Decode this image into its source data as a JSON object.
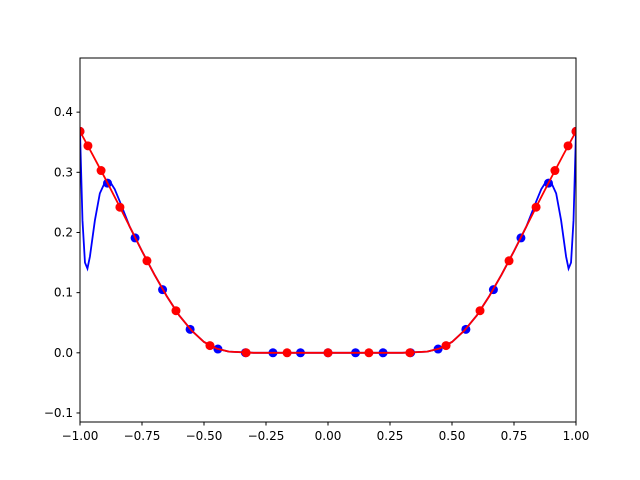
{
  "chart_data": {
    "type": "line",
    "xlim": [
      -1,
      1
    ],
    "ylim": [
      -0.115,
      0.49
    ],
    "xticks": [
      {
        "value": -1,
        "label": "−1.00"
      },
      {
        "value": -0.75,
        "label": "−0.75"
      },
      {
        "value": -0.5,
        "label": "−0.50"
      },
      {
        "value": -0.25,
        "label": "−0.25"
      },
      {
        "value": 0,
        "label": "0.00"
      },
      {
        "value": 0.25,
        "label": "0.25"
      },
      {
        "value": 0.5,
        "label": "0.50"
      },
      {
        "value": 0.75,
        "label": "0.75"
      },
      {
        "value": 1,
        "label": "1.00"
      }
    ],
    "yticks": [
      {
        "value": -0.1,
        "label": "−0.1"
      },
      {
        "value": 0,
        "label": "0.0"
      },
      0.1,
      0.2,
      0.3,
      0.4
    ],
    "series": [
      {
        "style": "line",
        "color": "#0000ff",
        "x": [
          -1,
          -0.99,
          -0.98,
          -0.97,
          -0.96,
          -0.94,
          -0.92,
          -0.9,
          -0.88,
          -0.86,
          -0.84,
          -0.8,
          -0.75,
          -0.7,
          -0.65,
          -0.6,
          -0.55,
          -0.5,
          -0.45,
          -0.4,
          -0.3,
          -0.2,
          -0.1,
          0,
          0.1,
          0.2,
          0.3,
          0.4,
          0.45,
          0.5,
          0.55,
          0.6,
          0.65,
          0.7,
          0.75,
          0.8,
          0.84,
          0.86,
          0.88,
          0.9,
          0.92,
          0.94,
          0.96,
          0.97,
          0.98,
          0.99,
          1
        ],
        "values": [
          0.368,
          0.22,
          0.15,
          0.14,
          0.16,
          0.22,
          0.265,
          0.283,
          0.285,
          0.272,
          0.252,
          0.21,
          0.169,
          0.13,
          0.094,
          0.062,
          0.037,
          0.018,
          0.0072,
          0.0019,
          0,
          0,
          0,
          0,
          0,
          0,
          0,
          0.0019,
          0.0072,
          0.018,
          0.037,
          0.062,
          0.094,
          0.13,
          0.169,
          0.21,
          0.252,
          0.272,
          0.285,
          0.283,
          0.265,
          0.22,
          0.16,
          0.14,
          0.15,
          0.22,
          0.368
        ]
      },
      {
        "style": "marker",
        "color": "#0000ff",
        "x": [
          -1,
          -0.889,
          -0.778,
          -0.667,
          -0.556,
          -0.444,
          -0.333,
          -0.222,
          -0.111,
          0,
          0.111,
          0.222,
          0.333,
          0.444,
          0.556,
          0.667,
          0.778,
          0.889,
          1
        ],
        "values": [
          0.368,
          0.282,
          0.191,
          0.105,
          0.039,
          0.0063,
          0.0001,
          0,
          0,
          0,
          0,
          0,
          0.0001,
          0.0063,
          0.039,
          0.105,
          0.191,
          0.282,
          0.368
        ]
      },
      {
        "style": "line",
        "color": "#ff0000",
        "x": [
          -1,
          -0.95,
          -0.9,
          -0.85,
          -0.8,
          -0.75,
          -0.7,
          -0.65,
          -0.6,
          -0.55,
          -0.5,
          -0.45,
          -0.4,
          -0.3,
          -0.2,
          -0.1,
          0,
          0.1,
          0.2,
          0.3,
          0.4,
          0.45,
          0.5,
          0.55,
          0.6,
          0.65,
          0.7,
          0.75,
          0.8,
          0.85,
          0.9,
          0.95,
          1
        ],
        "values": [
          0.368,
          0.33,
          0.291,
          0.251,
          0.21,
          0.169,
          0.13,
          0.094,
          0.062,
          0.037,
          0.018,
          0.0072,
          0.0019,
          0,
          0,
          0,
          0,
          0,
          0,
          0,
          0.0019,
          0.0072,
          0.018,
          0.037,
          0.062,
          0.094,
          0.13,
          0.169,
          0.21,
          0.251,
          0.291,
          0.33,
          0.368
        ]
      },
      {
        "style": "marker",
        "color": "#ff0000",
        "x": [
          -1,
          -0.968,
          -0.915,
          -0.839,
          -0.73,
          -0.613,
          -0.476,
          -0.33,
          -0.165,
          0,
          0.165,
          0.33,
          0.476,
          0.613,
          0.73,
          0.839,
          0.915,
          0.968,
          1
        ],
        "values": [
          0.368,
          0.344,
          0.303,
          0.242,
          0.153,
          0.07,
          0.012,
          0.0001,
          0,
          0,
          0,
          0.0001,
          0.012,
          0.07,
          0.153,
          0.242,
          0.303,
          0.344,
          0.368
        ]
      }
    ]
  }
}
